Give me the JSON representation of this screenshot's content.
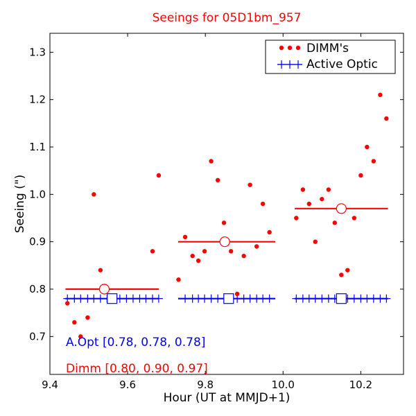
{
  "chart_data": {
    "type": "scatter",
    "title": "Seeings for 05D1bm_957",
    "xlabel": "Hour (UT at MMJD+1)",
    "ylabel": "Seeing (\")",
    "xlim": [
      9.4,
      10.31
    ],
    "ylim": [
      0.62,
      1.34
    ],
    "xticks": [
      9.4,
      9.6,
      9.8,
      10.0,
      10.2
    ],
    "xtick_labels": [
      "9.4",
      "9.6",
      "9.8",
      "10.0",
      "10.2"
    ],
    "yticks": [
      0.7,
      0.8,
      0.9,
      1.0,
      1.1,
      1.2,
      1.3
    ],
    "ytick_labels": [
      "0.7",
      "0.8",
      "0.9",
      "1.0",
      "1.1",
      "1.2",
      "1.3"
    ],
    "grid": false,
    "legend_position": "top-right",
    "colors": {
      "dimm": "#ff0000",
      "active_optic": "#0000ff"
    },
    "series": [
      {
        "name": "DIMM's",
        "kind": "dots",
        "points": [
          [
            9.445,
            0.77
          ],
          [
            9.463,
            0.73
          ],
          [
            9.479,
            0.7
          ],
          [
            9.497,
            0.74
          ],
          [
            9.513,
            1.0
          ],
          [
            9.53,
            0.84
          ],
          [
            9.664,
            0.88
          ],
          [
            9.68,
            1.04
          ],
          [
            9.731,
            0.82
          ],
          [
            9.748,
            0.91
          ],
          [
            9.767,
            0.87
          ],
          [
            9.782,
            0.86
          ],
          [
            9.798,
            0.88
          ],
          [
            9.815,
            1.07
          ],
          [
            9.832,
            1.03
          ],
          [
            9.848,
            0.94
          ],
          [
            9.866,
            0.88
          ],
          [
            9.882,
            0.79
          ],
          [
            9.899,
            0.87
          ],
          [
            9.915,
            1.02
          ],
          [
            9.932,
            0.89
          ],
          [
            9.948,
            0.98
          ],
          [
            9.965,
            0.92
          ],
          [
            10.034,
            0.95
          ],
          [
            10.051,
            1.01
          ],
          [
            10.067,
            0.98
          ],
          [
            10.083,
            0.9
          ],
          [
            10.1,
            0.99
          ],
          [
            10.117,
            1.01
          ],
          [
            10.133,
            0.94
          ],
          [
            10.15,
            0.83
          ],
          [
            10.166,
            0.84
          ],
          [
            10.183,
            0.95
          ],
          [
            10.2,
            1.04
          ],
          [
            10.216,
            1.1
          ],
          [
            10.233,
            1.07
          ],
          [
            10.25,
            1.21
          ],
          [
            10.266,
            1.16
          ]
        ]
      },
      {
        "name": "Active Optic",
        "kind": "plus",
        "points": [
          [
            9.445,
            0.78
          ],
          [
            9.463,
            0.78
          ],
          [
            9.479,
            0.78
          ],
          [
            9.497,
            0.78
          ],
          [
            9.513,
            0.78
          ],
          [
            9.53,
            0.78
          ],
          [
            9.547,
            0.78
          ],
          [
            9.563,
            0.78
          ],
          [
            9.58,
            0.78
          ],
          [
            9.597,
            0.78
          ],
          [
            9.614,
            0.78
          ],
          [
            9.631,
            0.78
          ],
          [
            9.647,
            0.78
          ],
          [
            9.664,
            0.78
          ],
          [
            9.68,
            0.78
          ],
          [
            9.748,
            0.78
          ],
          [
            9.767,
            0.78
          ],
          [
            9.782,
            0.78
          ],
          [
            9.798,
            0.78
          ],
          [
            9.815,
            0.78
          ],
          [
            9.832,
            0.78
          ],
          [
            9.848,
            0.78
          ],
          [
            9.866,
            0.78
          ],
          [
            9.882,
            0.78
          ],
          [
            9.899,
            0.78
          ],
          [
            9.915,
            0.78
          ],
          [
            9.932,
            0.78
          ],
          [
            9.948,
            0.78
          ],
          [
            9.965,
            0.78
          ],
          [
            10.034,
            0.78
          ],
          [
            10.051,
            0.78
          ],
          [
            10.067,
            0.78
          ],
          [
            10.083,
            0.78
          ],
          [
            10.1,
            0.78
          ],
          [
            10.117,
            0.78
          ],
          [
            10.133,
            0.78
          ],
          [
            10.166,
            0.78
          ],
          [
            10.183,
            0.78
          ],
          [
            10.2,
            0.78
          ],
          [
            10.216,
            0.78
          ],
          [
            10.233,
            0.78
          ],
          [
            10.25,
            0.78
          ],
          [
            10.266,
            0.78
          ]
        ]
      }
    ],
    "dimm_segments": [
      {
        "x_start": 9.44,
        "x_end": 9.68,
        "y": 0.8,
        "marker_x": 9.54
      },
      {
        "x_start": 9.73,
        "x_end": 9.98,
        "y": 0.9,
        "marker_x": 9.85
      },
      {
        "x_start": 10.03,
        "x_end": 10.27,
        "y": 0.97,
        "marker_x": 10.15
      }
    ],
    "ao_segments": [
      {
        "x_start": 9.44,
        "x_end": 9.68,
        "y": 0.78,
        "marker_x": 9.56
      },
      {
        "x_start": 9.73,
        "x_end": 9.98,
        "y": 0.78,
        "marker_x": 9.86
      },
      {
        "x_start": 10.03,
        "x_end": 10.27,
        "y": 0.78,
        "marker_x": 10.15
      }
    ],
    "annotations": {
      "ao_text": "A.Opt [0.78, 0.78, 0.78]",
      "dimm_text": "Dimm [0.80, 0.90, 0.97]"
    }
  }
}
